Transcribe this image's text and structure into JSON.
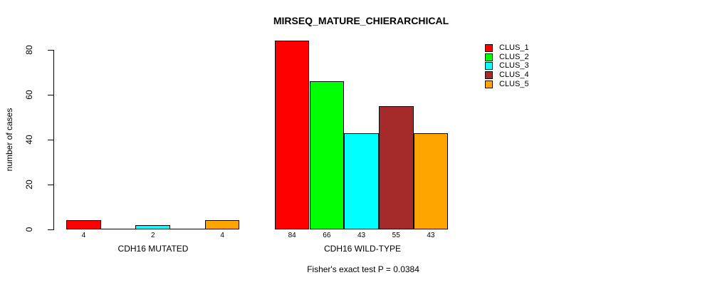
{
  "figure": {
    "title": "MIRSEQ_MATURE_CHIERARCHICAL",
    "subtitle": "Fisher's exact test P = 0.0384",
    "background": "#ffffff",
    "foreground": "#000000"
  },
  "chart_data": {
    "type": "bar",
    "title": "MIRSEQ_MATURE_CHIERARCHICAL",
    "xlabel": "",
    "ylabel": "number of cases",
    "ylim": [
      0,
      80
    ],
    "yticks": [
      0,
      20,
      40,
      60,
      80
    ],
    "grid": false,
    "legend_position": "top-right",
    "categories": [
      "CDH16 MUTATED",
      "CDH16 WILD-TYPE"
    ],
    "series": [
      {
        "name": "CLUS_1",
        "color": "#FF0000",
        "values": [
          4,
          84
        ]
      },
      {
        "name": "CLUS_2",
        "color": "#00FF00",
        "values": [
          0,
          66
        ]
      },
      {
        "name": "CLUS_3",
        "color": "#00FFFF",
        "values": [
          2,
          43
        ]
      },
      {
        "name": "CLUS_4",
        "color": "#A52A2A",
        "values": [
          0,
          55
        ]
      },
      {
        "name": "CLUS_5",
        "color": "#FFA500",
        "values": [
          4,
          43
        ]
      }
    ],
    "bar_value_labels": [
      [
        "4",
        "",
        "2",
        "",
        "4"
      ],
      [
        "84",
        "66",
        "43",
        "55",
        "43"
      ]
    ],
    "annotation": "Fisher's exact test P = 0.0384"
  }
}
